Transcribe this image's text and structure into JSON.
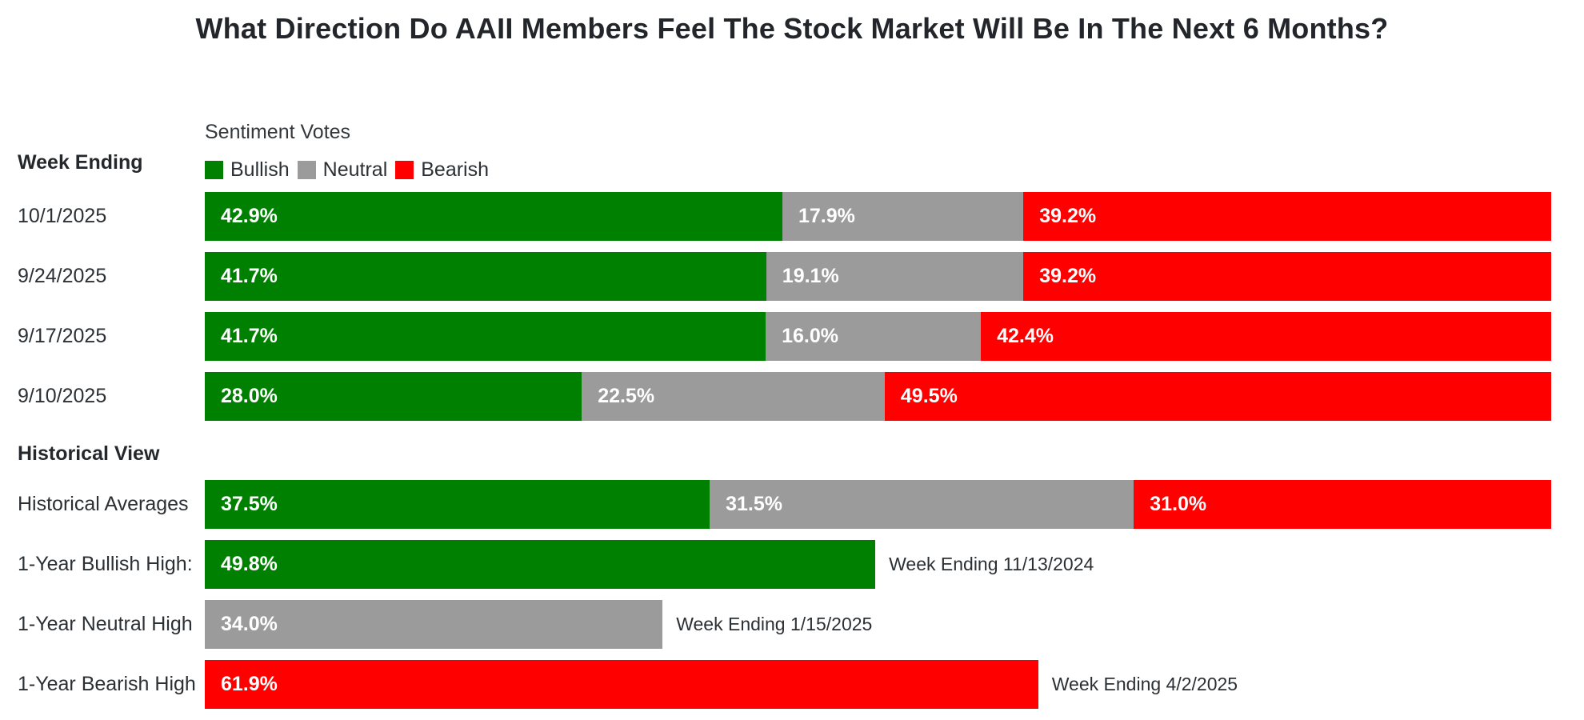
{
  "title": "What Direction Do AAII Members Feel The Stock Market Will Be In The Next 6 Months?",
  "colors": {
    "bullish": "#008000",
    "neutral": "#9b9b9b",
    "bearish": "#ff0000"
  },
  "week_ending_header": "Week Ending",
  "legend": {
    "title": "Sentiment Votes",
    "items": [
      {
        "key": "bullish",
        "label": "Bullish"
      },
      {
        "key": "neutral",
        "label": "Neutral"
      },
      {
        "key": "bearish",
        "label": "Bearish"
      }
    ]
  },
  "weekly_rows": [
    {
      "date": "10/1/2025",
      "bullish": 42.9,
      "neutral": 17.9,
      "bearish": 39.2
    },
    {
      "date": "9/24/2025",
      "bullish": 41.7,
      "neutral": 19.1,
      "bearish": 39.2
    },
    {
      "date": "9/17/2025",
      "bullish": 41.7,
      "neutral": 16.0,
      "bearish": 42.4
    },
    {
      "date": "9/10/2025",
      "bullish": 28.0,
      "neutral": 22.5,
      "bearish": 49.5
    }
  ],
  "historical": {
    "header": "Historical View",
    "average_row": {
      "label": "Historical Averages",
      "bullish": 37.5,
      "neutral": 31.5,
      "bearish": 31.0
    },
    "extreme_rows": [
      {
        "label": "1-Year Bullish High:",
        "key": "bullish",
        "value": 49.8,
        "annotation": "Week Ending 11/13/2024"
      },
      {
        "label": "1-Year Neutral High",
        "key": "neutral",
        "value": 34.0,
        "annotation": "Week Ending 1/15/2025"
      },
      {
        "label": "1-Year Bearish High",
        "key": "bearish",
        "value": 61.9,
        "annotation": "Week Ending 4/2/2025"
      }
    ]
  },
  "chart_data": {
    "type": "bar",
    "orientation": "horizontal",
    "stacked": true,
    "title": "What Direction Do AAII Members Feel The Stock Market Will Be In The Next 6 Months?",
    "legend_title": "Sentiment Votes",
    "legend_position": "top-left",
    "unit": "%",
    "xlim": [
      0,
      100
    ],
    "grid": false,
    "categories": [
      "10/1/2025",
      "9/24/2025",
      "9/17/2025",
      "9/10/2025",
      "Historical Averages",
      "1-Year Bullish High:",
      "1-Year Neutral High",
      "1-Year Bearish High"
    ],
    "series": [
      {
        "name": "Bullish",
        "color": "#008000",
        "values": [
          42.9,
          41.7,
          41.7,
          28.0,
          37.5,
          49.8,
          null,
          null
        ]
      },
      {
        "name": "Neutral",
        "color": "#9b9b9b",
        "values": [
          17.9,
          19.1,
          16.0,
          22.5,
          31.5,
          null,
          34.0,
          null
        ]
      },
      {
        "name": "Bearish",
        "color": "#ff0000",
        "values": [
          39.2,
          39.2,
          42.4,
          49.5,
          31.0,
          null,
          null,
          61.9
        ]
      }
    ],
    "annotations": [
      {
        "category": "1-Year Bullish High:",
        "text": "Week Ending 11/13/2024"
      },
      {
        "category": "1-Year Neutral High",
        "text": "Week Ending 1/15/2025"
      },
      {
        "category": "1-Year Bearish High",
        "text": "Week Ending 4/2/2025"
      }
    ],
    "section_headers": [
      "Week Ending",
      "Historical View"
    ]
  }
}
